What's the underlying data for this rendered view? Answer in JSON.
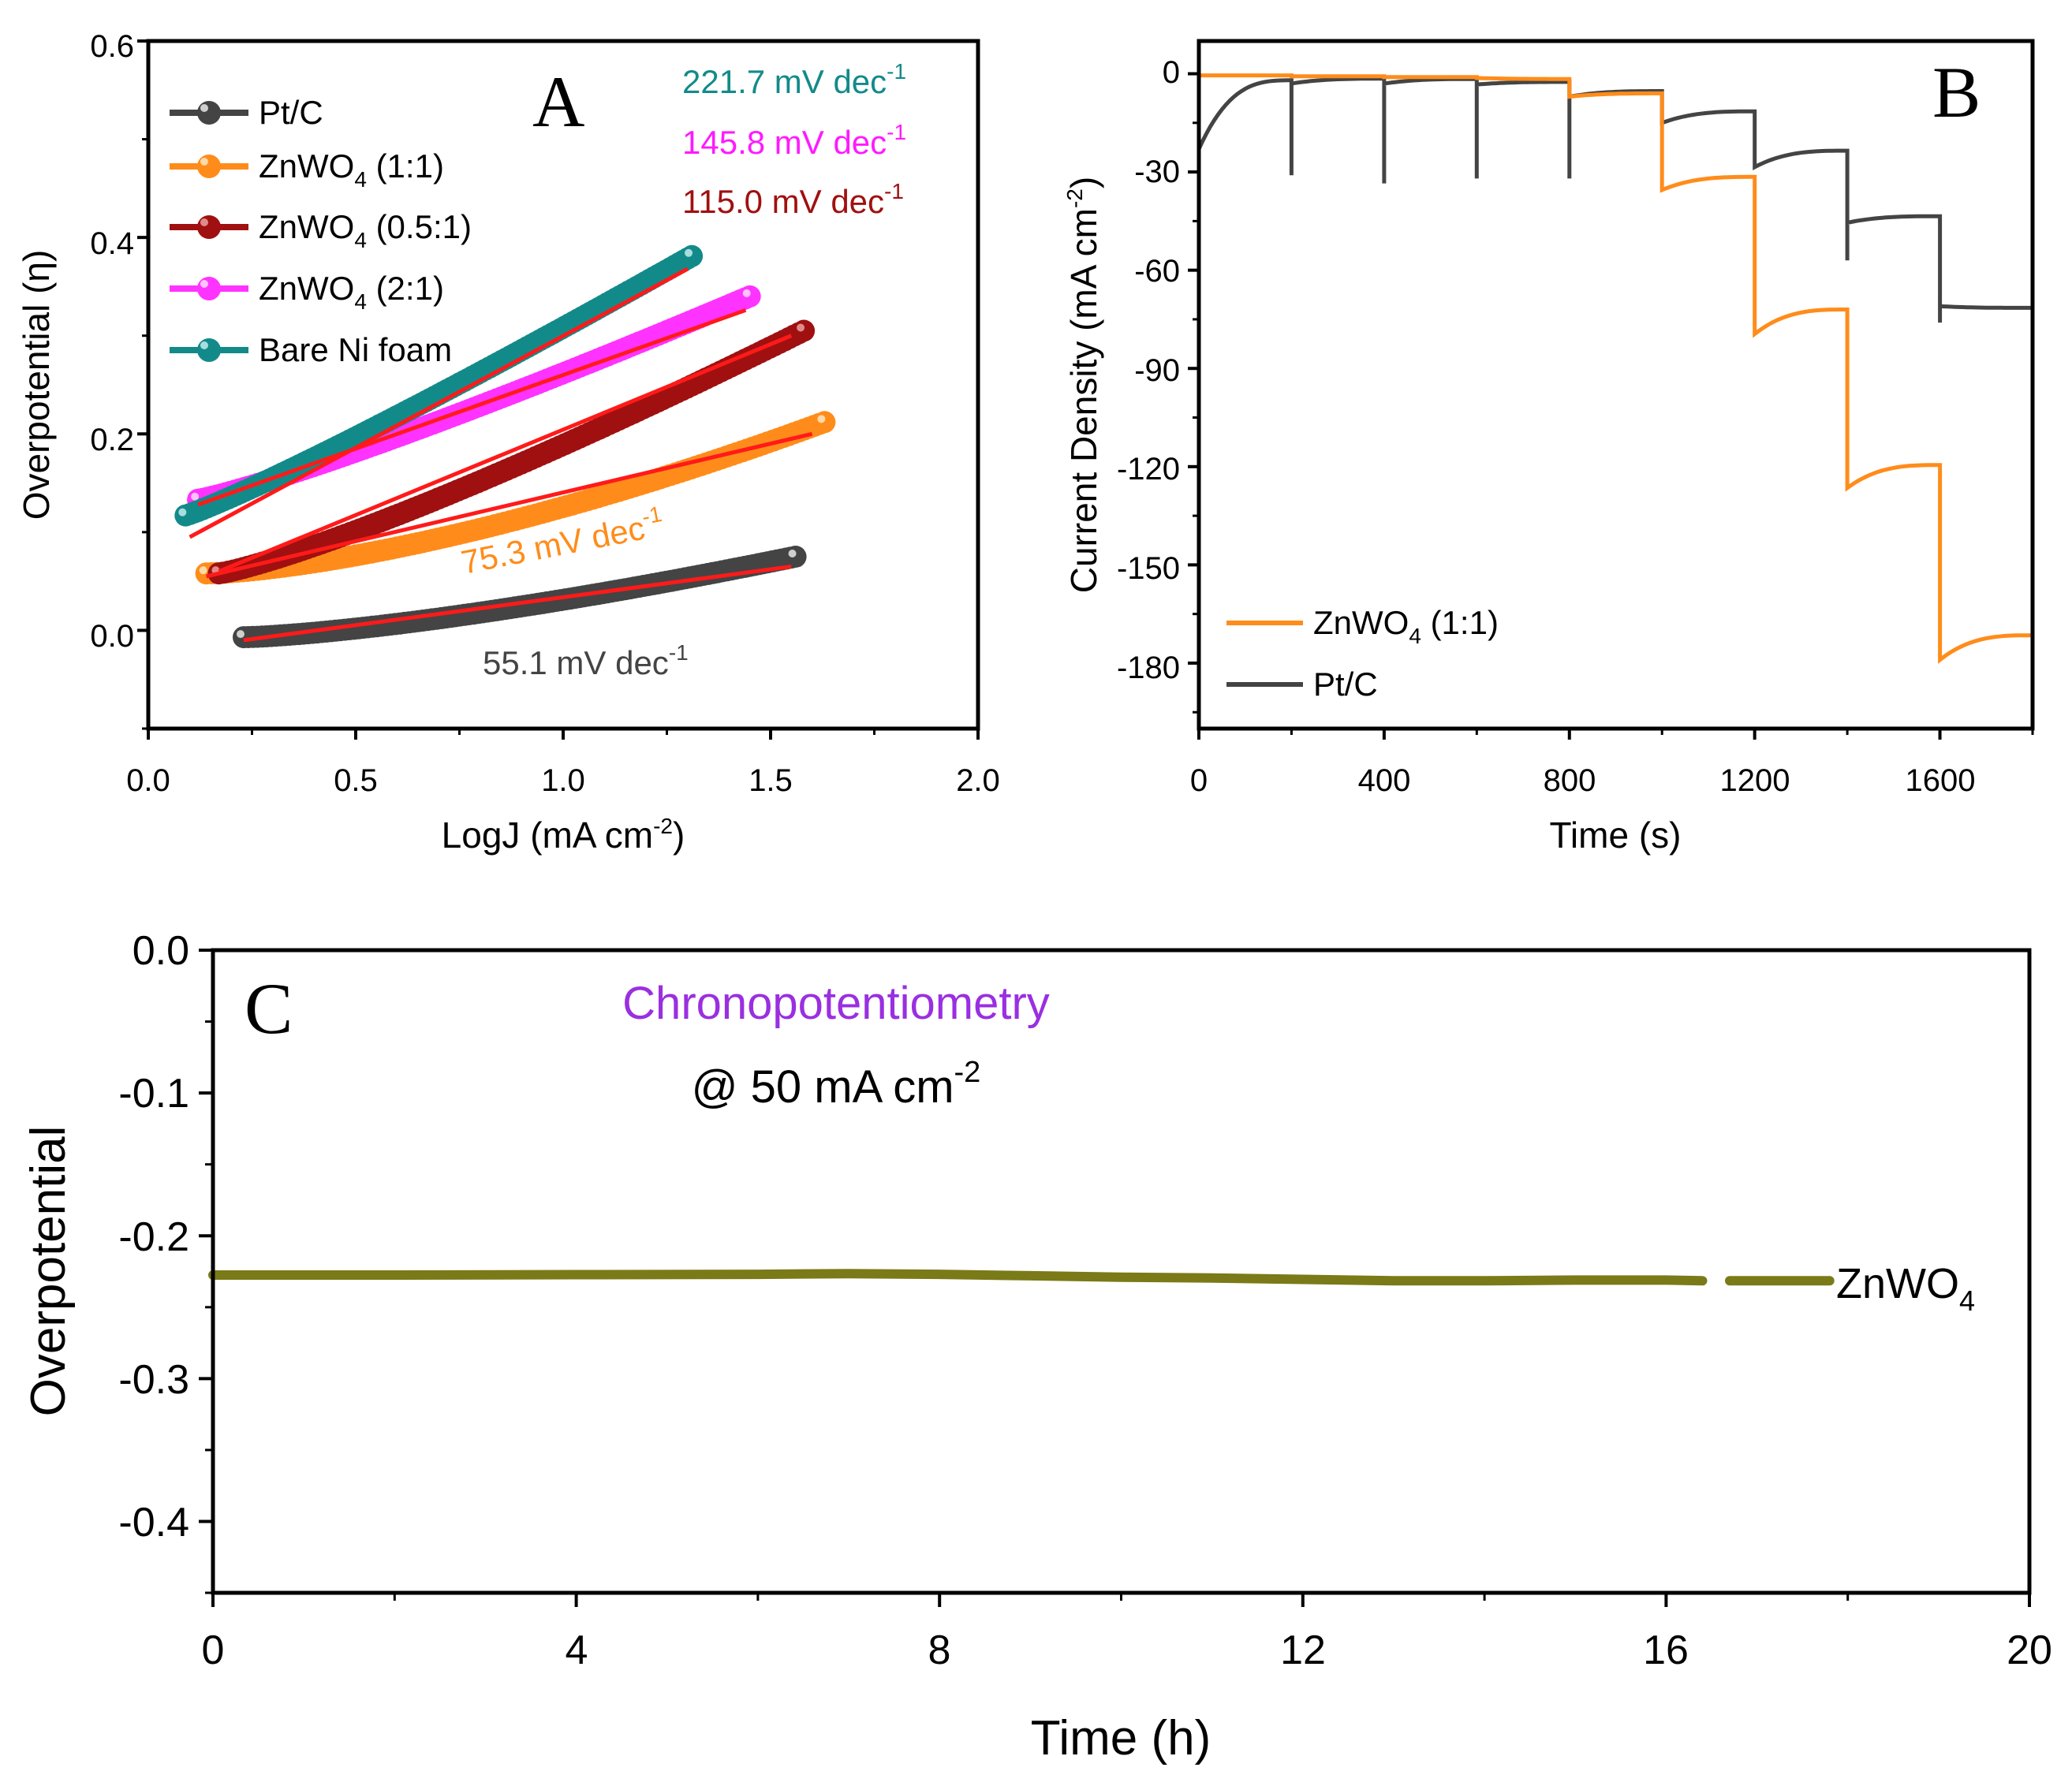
{
  "colors": {
    "ptc": "#444444",
    "zn11": "#ff8c1a",
    "zn051": "#a01010",
    "zn21": "#ff33ff",
    "ni": "#138a8a",
    "fit": "#ff1a1a",
    "olive": "#7a7a18",
    "purple": "#9a2fe0"
  },
  "panelA": {
    "label": "A",
    "xlabel": "LogJ (mA cm",
    "xlabel_sup": "-2",
    "xlabel_end": ")",
    "ylabel": "Overpotential (η)",
    "x_ticks": [
      "0.0",
      "0.5",
      "1.0",
      "1.5",
      "2.0"
    ],
    "y_ticks": [
      "0.0",
      "0.2",
      "0.4",
      "0.6"
    ],
    "legend": [
      {
        "name": "Pt/C",
        "sub": "",
        "suffix": ""
      },
      {
        "name": "ZnWO",
        "sub": "4",
        "suffix": " (1:1)"
      },
      {
        "name": "ZnWO",
        "sub": "4",
        "suffix": " (0.5:1)"
      },
      {
        "name": "ZnWO",
        "sub": "4",
        "suffix": " (2:1)"
      },
      {
        "name": "Bare Ni foam",
        "sub": "",
        "suffix": ""
      }
    ],
    "slopes": [
      {
        "text": "221.7 mV dec",
        "sup": "-1"
      },
      {
        "text": "145.8 mV dec",
        "sup": "-1"
      },
      {
        "text": "115.0 mV dec",
        "sup": "-1"
      },
      {
        "text": "75.3 mV dec",
        "sup": "-1"
      },
      {
        "text": "55.1 mV dec",
        "sup": "-1"
      }
    ]
  },
  "panelB": {
    "label": "B",
    "xlabel": "Time (s)",
    "ylabel": "Current Density (mA cm",
    "ylabel_sup": "-2",
    "ylabel_end": ")",
    "x_ticks": [
      "0",
      "400",
      "800",
      "1200",
      "1600"
    ],
    "y_ticks": [
      "0",
      "-30",
      "-60",
      "-90",
      "-120",
      "-150",
      "-180"
    ],
    "legend": [
      {
        "name": "ZnWO",
        "sub": "4",
        "suffix": " (1:1)"
      },
      {
        "name": "Pt/C",
        "sub": "",
        "suffix": ""
      }
    ]
  },
  "panelC": {
    "label": "C",
    "title": "Chronopotentiometry",
    "subtitle": "@ 50 mA cm",
    "subtitle_sup": "-2",
    "xlabel": "Time (h)",
    "ylabel": "Overpotential",
    "x_ticks": [
      "0",
      "4",
      "8",
      "12",
      "16",
      "20"
    ],
    "y_ticks": [
      "0.0",
      "-0.1",
      "-0.2",
      "-0.3",
      "-0.4"
    ],
    "series_label": "ZnWO",
    "series_sub": "4"
  },
  "chart_data": [
    {
      "type": "scatter",
      "panel": "A",
      "title": "",
      "xlabel": "LogJ (mA cm-2)",
      "ylabel": "Overpotential (η)",
      "xlim": [
        0.0,
        2.0
      ],
      "ylim": [
        -0.1,
        0.6
      ],
      "series": [
        {
          "name": "Pt/C",
          "x_range": [
            0.23,
            1.56
          ],
          "y_range": [
            -0.007,
            0.075
          ],
          "curve": 1.4,
          "fit_slope_label": "55.1 mV dec-1",
          "fit": [
            [
              0.23,
              -0.01
            ],
            [
              1.55,
              0.065
            ]
          ]
        },
        {
          "name": "ZnWO4 (1:1)",
          "x_range": [
            0.14,
            1.63
          ],
          "y_range": [
            0.058,
            0.212
          ],
          "curve": 1.5,
          "fit_slope_label": "75.3 mV dec-1",
          "fit": [
            [
              0.14,
              0.055
            ],
            [
              1.6,
              0.2
            ]
          ]
        },
        {
          "name": "ZnWO4 (0.5:1)",
          "x_range": [
            0.17,
            1.58
          ],
          "y_range": [
            0.058,
            0.305
          ],
          "curve": 1.2,
          "fit_slope_label": "115.0 mV dec-1",
          "fit": [
            [
              0.17,
              0.06
            ],
            [
              1.55,
              0.3
            ]
          ]
        },
        {
          "name": "ZnWO4 (2:1)",
          "x_range": [
            0.12,
            1.45
          ],
          "y_range": [
            0.133,
            0.34
          ],
          "curve": 1.15,
          "fit_slope_label": "145.8 mV dec-1",
          "fit": [
            [
              0.12,
              0.128
            ],
            [
              1.44,
              0.326
            ]
          ]
        },
        {
          "name": "Bare Ni foam",
          "x_range": [
            0.09,
            1.31
          ],
          "y_range": [
            0.117,
            0.381
          ],
          "curve": 1.1,
          "fit_slope_label": "221.7 mV dec-1",
          "fit": [
            [
              0.1,
              0.095
            ],
            [
              1.3,
              0.368
            ]
          ]
        }
      ]
    },
    {
      "type": "line",
      "panel": "B",
      "xlabel": "Time (s)",
      "ylabel": "Current Density (mA cm-2)",
      "xlim": [
        0,
        1800
      ],
      "ylim": [
        -200,
        10
      ],
      "series": [
        {
          "name": "ZnWO4 (1:1)",
          "step_times": [
            0,
            200,
            400,
            600,
            800,
            1000,
            1200,
            1400,
            1600
          ],
          "step_start": [
            -0.5,
            -0.8,
            -1.0,
            -1.3,
            -7.0,
            -35.5,
            -79.5,
            -126.5,
            -179.0
          ],
          "step_end": [
            -0.5,
            -0.8,
            -1.0,
            -1.6,
            -6.0,
            -31.5,
            -72.0,
            -119.5,
            -171.5
          ]
        },
        {
          "name": "Pt/C",
          "step_times": [
            0,
            200,
            400,
            600,
            800,
            1000,
            1200,
            1400,
            1600
          ],
          "step_start": [
            -23.0,
            -3.0,
            -3.0,
            -3.3,
            -7.0,
            -15.0,
            -28.5,
            -45.5,
            -71.0
          ],
          "step_end": [
            -2.0,
            -1.5,
            -1.6,
            -2.5,
            -5.3,
            -11.5,
            -23.5,
            -43.5,
            -71.5
          ],
          "spike_min": [
            -23.0,
            -31.0,
            -33.5,
            -32.0,
            -32.0,
            -15.0,
            -28.5,
            -57.0,
            -76.0
          ]
        }
      ]
    },
    {
      "type": "line",
      "panel": "C",
      "title": "Chronopotentiometry",
      "xlabel": "Time (h)",
      "ylabel": "Overpotential",
      "xlim": [
        0,
        20
      ],
      "ylim": [
        -0.45,
        0.0
      ],
      "series": [
        {
          "name": "ZnWO4",
          "x": [
            0,
            2,
            4,
            6,
            7,
            8,
            9,
            10,
            11,
            12,
            13,
            14,
            15,
            16,
            16.4,
            16.7,
            17,
            17.8
          ],
          "y": [
            -0.2275,
            -0.2275,
            -0.2272,
            -0.227,
            -0.2265,
            -0.227,
            -0.228,
            -0.229,
            -0.2295,
            -0.2305,
            -0.2315,
            -0.2315,
            -0.231,
            -0.231,
            -0.2315,
            -0.2315,
            -0.2315,
            -0.2315
          ],
          "gap": [
            16.4,
            16.7
          ]
        }
      ]
    }
  ]
}
